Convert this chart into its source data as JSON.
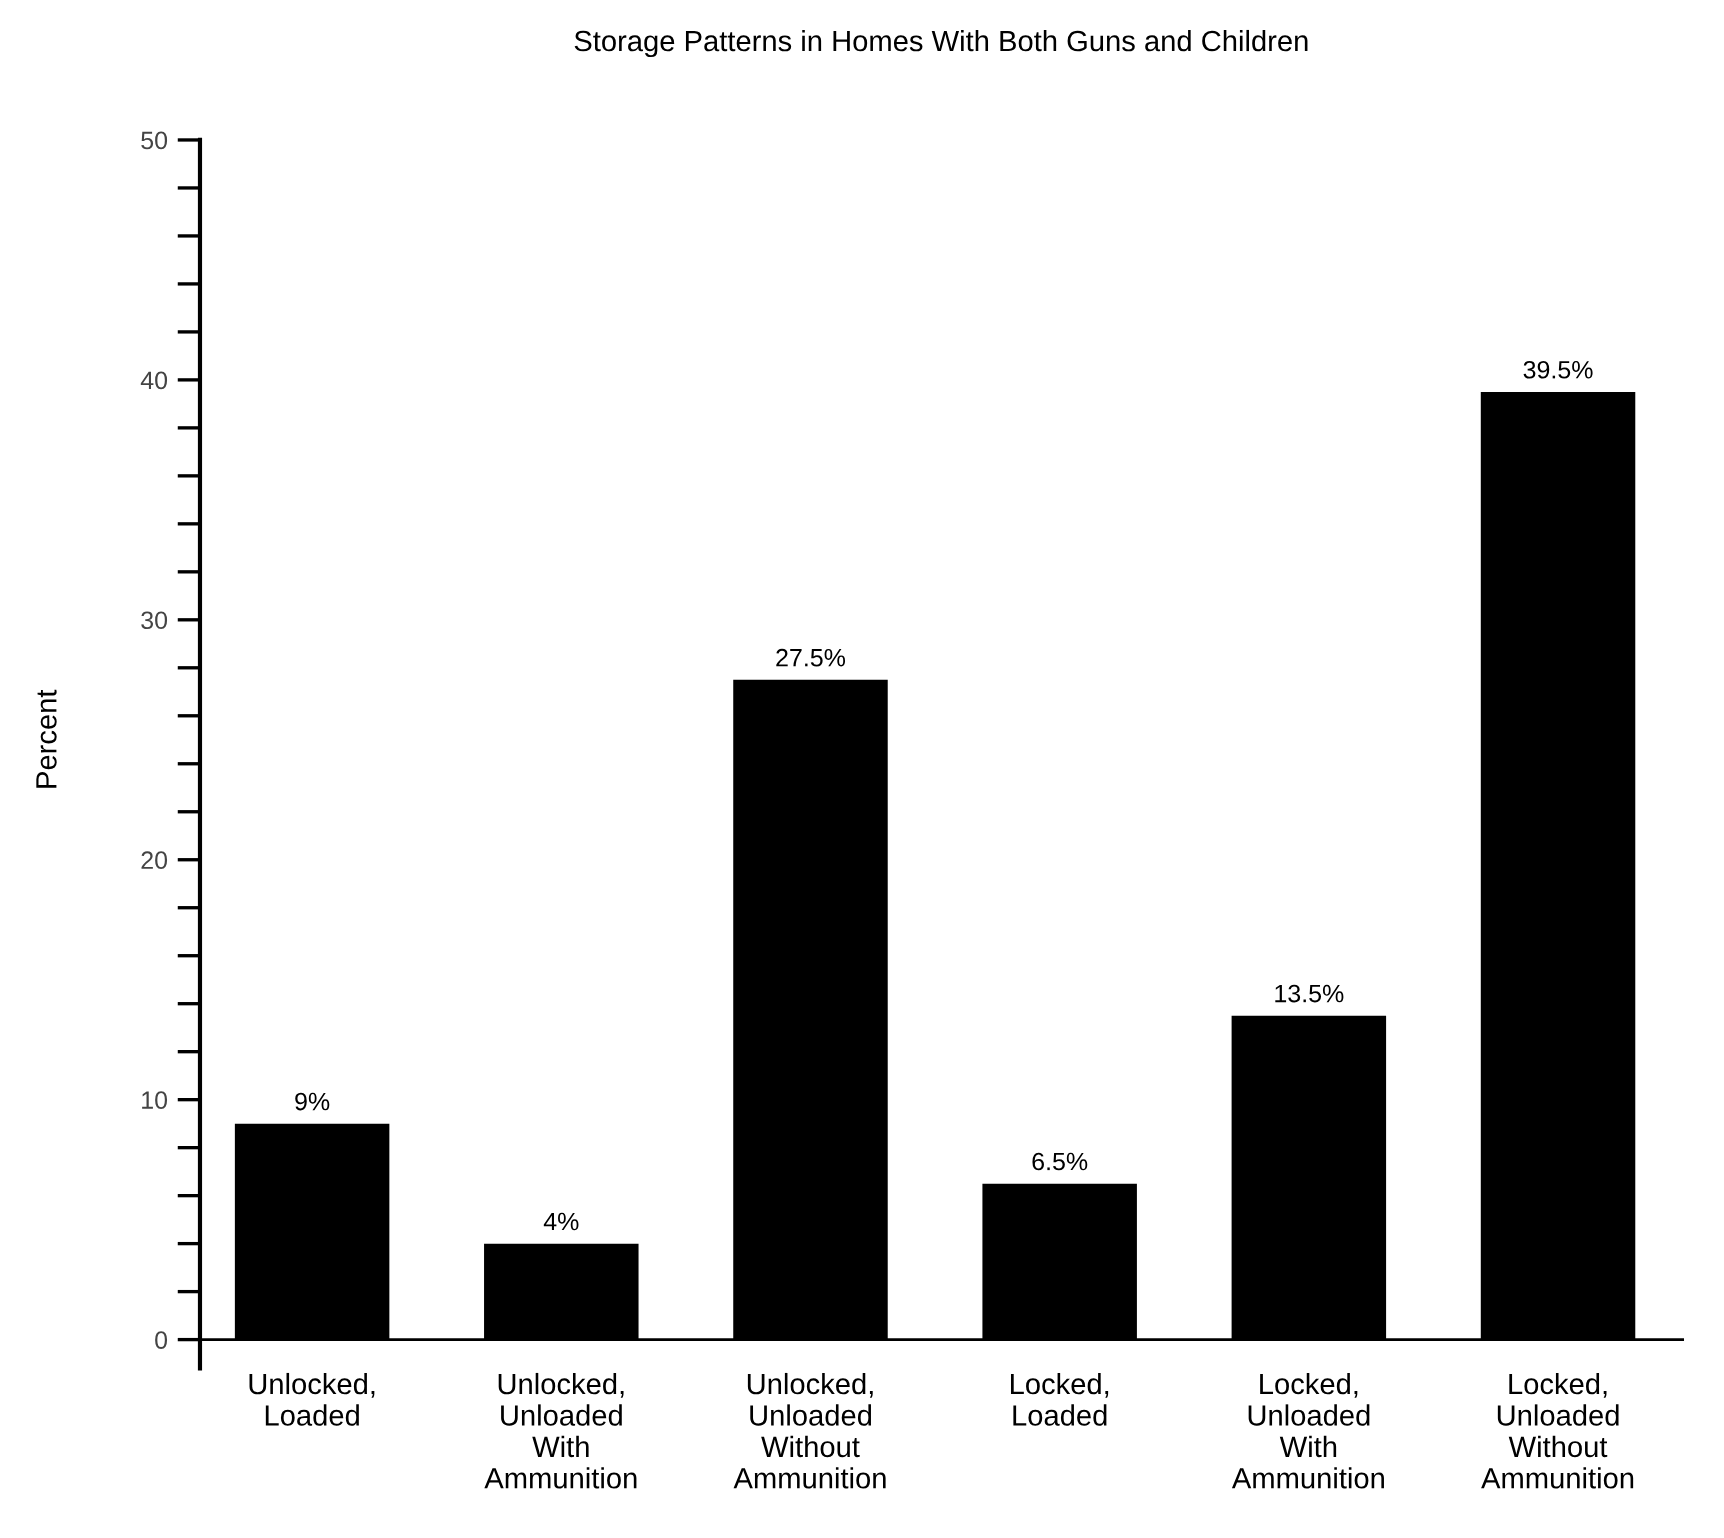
{
  "chart_data": {
    "type": "bar",
    "title": "Storage Patterns in Homes With Both Guns and Children",
    "ylabel": "Percent",
    "categories": [
      "Unlocked,\nLoaded",
      "Unlocked,\nUnloaded\nWith\nAmmunition",
      "Unlocked,\nUnloaded\nWithout\nAmmunition",
      "Locked,\nLoaded",
      "Locked,\nUnloaded\nWith\nAmmunition",
      "Locked,\nUnloaded\nWithout\nAmmunition"
    ],
    "values": [
      9,
      4,
      27.5,
      6.5,
      13.5,
      39.5
    ],
    "value_labels": [
      "9%",
      "4%",
      "27.5%",
      "6.5%",
      "13.5%",
      "39.5%"
    ],
    "color": "#000000",
    "ylim": [
      0,
      50
    ],
    "yticks": [
      0,
      {
        "value": 2,
        "label": null
      },
      {
        "value": 4,
        "label": null
      },
      {
        "value": 6,
        "label": null
      },
      {
        "value": 8,
        "label": null
      },
      10,
      {
        "value": 12,
        "label": null
      },
      {
        "value": 14,
        "label": null
      },
      {
        "value": 16,
        "label": null
      },
      {
        "value": 18,
        "label": null
      },
      20,
      {
        "value": 22,
        "label": null
      },
      {
        "value": 24,
        "label": null
      },
      {
        "value": 26,
        "label": null
      },
      {
        "value": 28,
        "label": null
      },
      30,
      {
        "value": 32,
        "label": null
      },
      {
        "value": 34,
        "label": null
      },
      {
        "value": 36,
        "label": null
      },
      {
        "value": 38,
        "label": null
      },
      40,
      {
        "value": 42,
        "label": null
      },
      {
        "value": 44,
        "label": null
      },
      {
        "value": 46,
        "label": null
      },
      {
        "value": 48,
        "label": null
      },
      50
    ],
    "grid": false,
    "legend": false
  }
}
